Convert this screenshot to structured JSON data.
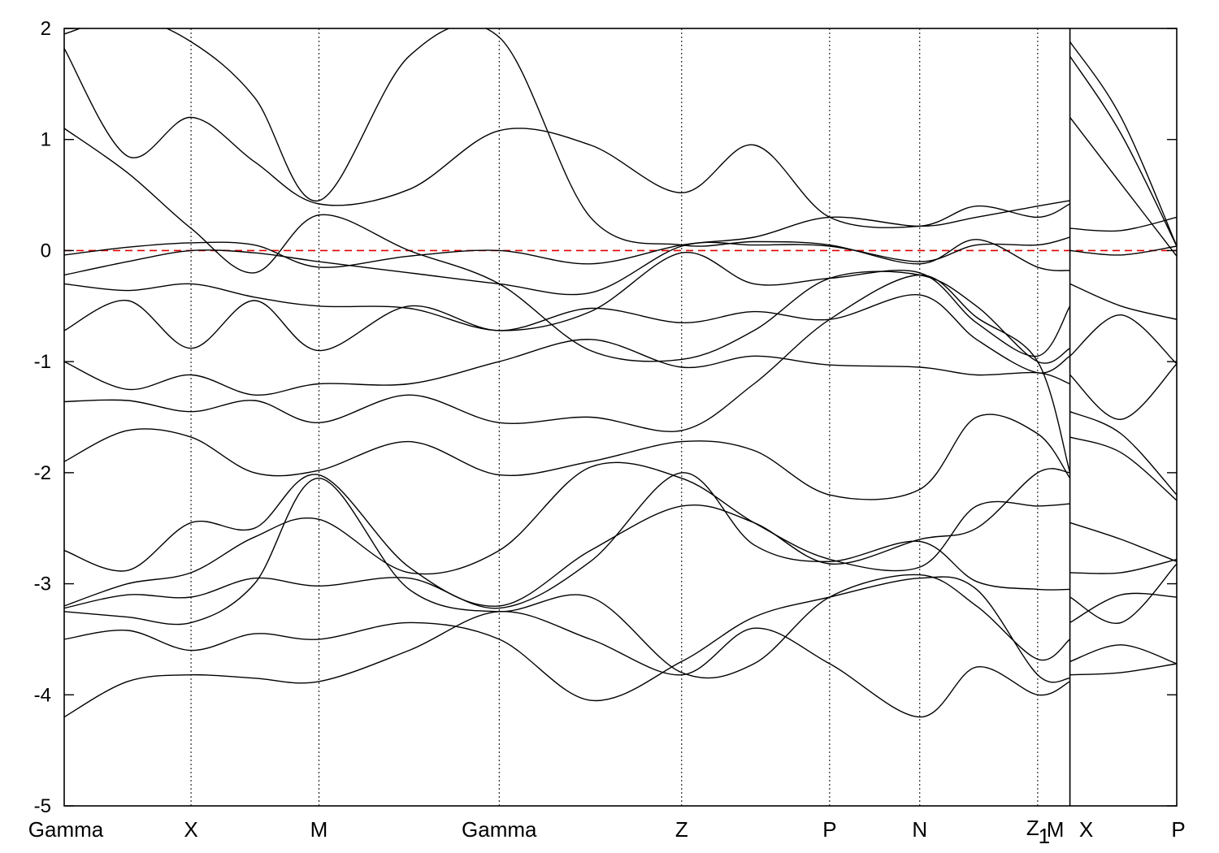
{
  "chart_data": {
    "type": "line",
    "title": "",
    "xlabel": "",
    "ylabel": "",
    "ylim": [
      -5,
      2
    ],
    "yticks": [
      2,
      1,
      0,
      -1,
      -2,
      -3,
      -4,
      -5
    ],
    "ytick_labels": [
      "2",
      "1",
      "0",
      "-1",
      "-2",
      "-3",
      "-4",
      "-5"
    ],
    "xlim": [
      0,
      10
    ],
    "kpoints": [
      {
        "label": "Gamma",
        "x": 0.0
      },
      {
        "label": "X",
        "x": 1.14
      },
      {
        "label": "M",
        "x": 2.29
      },
      {
        "label": "Gamma",
        "x": 3.91
      },
      {
        "label": "Z",
        "x": 5.55
      },
      {
        "label": "P",
        "x": 6.88
      },
      {
        "label": "N",
        "x": 7.69
      },
      {
        "label": "Z",
        "x": 8.75
      },
      {
        "label": "1",
        "x": 8.75
      },
      {
        "label": "M",
        "x": 9.04
      },
      {
        "label": "X",
        "x": 9.04
      },
      {
        "label": "P",
        "x": 10.0
      }
    ],
    "segment_break_x": 9.04,
    "fermi_level": 0,
    "fermi_color": "#e00000",
    "band_color": "#000000",
    "series": [
      {
        "x": [
          0,
          0.57,
          1.14,
          1.71,
          2.29,
          3.1,
          3.91,
          4.73,
          5.55,
          6.2,
          6.88,
          7.69,
          8.2,
          8.75,
          9.04
        ],
        "y": [
          -0.04,
          0.03,
          0.07,
          0.05,
          -0.15,
          -0.05,
          0.0,
          -0.12,
          0.05,
          0.12,
          0.3,
          0.22,
          0.3,
          0.4,
          0.45
        ]
      },
      {
        "x": [
          9.04,
          9.5,
          10.0
        ],
        "y": [
          0.2,
          0.18,
          0.3
        ]
      },
      {
        "x": [
          0,
          0.57,
          1.14,
          1.71,
          2.29,
          3.1,
          3.91,
          4.73,
          5.55,
          6.2,
          6.88,
          7.69,
          8.2,
          8.75,
          9.04
        ],
        "y": [
          -0.22,
          -0.1,
          0.0,
          -0.02,
          -0.1,
          -0.2,
          -0.3,
          -0.38,
          0.04,
          0.05,
          0.04,
          -0.1,
          0.05,
          0.05,
          0.12
        ]
      },
      {
        "x": [
          9.04,
          9.5,
          10.0
        ],
        "y": [
          0.0,
          -0.04,
          0.04
        ]
      },
      {
        "x": [
          0,
          0.57,
          1.14,
          1.71,
          2.29,
          3.1,
          3.91,
          4.73,
          5.55,
          6.2,
          6.88,
          7.69,
          8.2,
          8.75,
          9.04
        ],
        "y": [
          -0.3,
          -0.36,
          -0.3,
          -0.42,
          -0.5,
          -0.52,
          -0.72,
          -0.55,
          -0.02,
          -0.3,
          -0.25,
          -0.2,
          -0.65,
          -0.95,
          -0.5
        ]
      },
      {
        "x": [
          9.04,
          9.5,
          10.0
        ],
        "y": [
          -0.3,
          -0.5,
          -0.62
        ]
      },
      {
        "x": [
          0,
          0.57,
          1.14,
          1.71,
          2.29,
          3.1,
          3.91,
          4.73,
          5.55,
          6.2,
          6.88,
          7.69,
          8.2,
          8.75,
          9.04
        ],
        "y": [
          -0.72,
          -0.45,
          -0.88,
          -0.45,
          -0.9,
          -0.5,
          -0.72,
          -0.52,
          -0.65,
          -0.55,
          -0.62,
          -0.4,
          -0.8,
          -1.1,
          -0.95
        ]
      },
      {
        "x": [
          9.04,
          9.5,
          10.0
        ],
        "y": [
          -0.95,
          -0.58,
          -1.02
        ]
      },
      {
        "x": [
          0,
          0.57,
          1.14,
          1.71,
          2.29,
          3.1,
          3.91,
          4.73,
          5.55,
          6.2,
          6.88,
          7.69,
          8.2,
          8.75,
          9.04
        ],
        "y": [
          -1.0,
          -1.25,
          -1.12,
          -1.3,
          -1.2,
          -1.2,
          -1.0,
          -0.8,
          -1.05,
          -0.95,
          -1.03,
          -1.05,
          -1.12,
          -1.1,
          -1.2
        ]
      },
      {
        "x": [
          9.04,
          9.5,
          10.0
        ],
        "y": [
          -1.12,
          -1.52,
          -1.02
        ]
      },
      {
        "x": [
          0,
          0.57,
          1.14,
          1.71,
          2.29,
          3.1,
          3.91,
          4.73,
          5.55,
          6.2,
          6.88,
          7.69,
          8.2,
          8.75,
          9.04
        ],
        "y": [
          -1.36,
          -1.35,
          -1.45,
          -1.35,
          -1.55,
          -1.3,
          -1.55,
          -1.5,
          -1.62,
          -1.2,
          -0.62,
          -0.22,
          -0.6,
          -1.0,
          -2.0
        ]
      },
      {
        "x": [
          9.04,
          9.5,
          10.0
        ],
        "y": [
          -1.45,
          -1.65,
          -2.2
        ]
      },
      {
        "x": [
          0,
          0.57,
          1.14,
          1.71,
          2.29,
          3.1,
          3.91,
          4.73,
          5.55,
          6.2,
          6.88,
          7.69,
          8.2,
          8.75,
          9.04
        ],
        "y": [
          -1.9,
          -1.62,
          -1.68,
          -2.0,
          -1.98,
          -1.72,
          -2.02,
          -1.9,
          -1.72,
          -1.8,
          -2.2,
          -2.15,
          -1.5,
          -1.65,
          -2.05
        ]
      },
      {
        "x": [
          9.04,
          9.5,
          10.0
        ],
        "y": [
          -1.68,
          -1.82,
          -2.25
        ]
      },
      {
        "x": [
          0,
          0.57,
          1.14,
          1.71,
          2.29,
          3.1,
          3.91,
          4.73,
          5.55,
          6.2,
          6.88,
          7.69,
          8.2,
          8.75,
          9.04
        ],
        "y": [
          -2.7,
          -2.88,
          -2.45,
          -2.5,
          -2.02,
          -2.85,
          -3.2,
          -2.7,
          -2.3,
          -2.45,
          -2.82,
          -2.6,
          -2.5,
          -2.0,
          -2.0
        ]
      },
      {
        "x": [
          9.04,
          9.5,
          10.0
        ],
        "y": [
          -2.45,
          -2.6,
          -2.8
        ]
      },
      {
        "x": [
          0,
          0.57,
          1.14,
          1.71,
          2.29,
          3.1,
          3.91,
          4.73,
          5.55,
          6.2,
          6.88,
          7.69,
          8.2,
          8.75,
          9.04
        ],
        "y": [
          -3.2,
          -3.0,
          -2.9,
          -2.58,
          -2.42,
          -2.9,
          -2.7,
          -1.95,
          -2.05,
          -2.45,
          -2.78,
          -2.85,
          -2.3,
          -2.3,
          -2.28
        ]
      },
      {
        "x": [
          9.04,
          9.5,
          10.0
        ],
        "y": [
          -2.9,
          -2.9,
          -2.78
        ]
      },
      {
        "x": [
          0,
          0.57,
          1.14,
          1.71,
          2.29,
          3.1,
          3.91,
          4.73,
          5.55,
          6.2,
          6.88,
          7.69,
          8.2,
          8.75,
          9.04
        ],
        "y": [
          -3.22,
          -3.1,
          -3.12,
          -2.95,
          -3.02,
          -2.95,
          -3.22,
          -2.8,
          -2.0,
          -2.65,
          -2.8,
          -2.62,
          -2.98,
          -3.05,
          -3.05
        ]
      },
      {
        "x": [
          9.04,
          9.5,
          10.0
        ],
        "y": [
          -3.12,
          -3.35,
          -2.82
        ]
      },
      {
        "x": [
          0,
          0.57,
          1.14,
          1.71,
          2.29,
          3.1,
          3.91,
          4.73,
          5.55,
          6.2,
          6.88,
          7.69,
          8.2,
          8.75,
          9.04
        ],
        "y": [
          -3.25,
          -3.3,
          -3.35,
          -3.0,
          -2.05,
          -3.05,
          -3.25,
          -3.12,
          -3.8,
          -3.72,
          -3.12,
          -2.92,
          -3.2,
          -3.68,
          -3.5
        ]
      },
      {
        "x": [
          9.04,
          9.5,
          10.0
        ],
        "y": [
          -3.35,
          -3.1,
          -3.12
        ]
      },
      {
        "x": [
          0,
          0.57,
          1.14,
          1.71,
          2.29,
          3.1,
          3.91,
          4.73,
          5.55,
          6.2,
          6.88,
          7.69,
          8.2,
          8.75,
          9.04
        ],
        "y": [
          -3.5,
          -3.42,
          -3.6,
          -3.45,
          -3.5,
          -3.35,
          -3.5,
          -4.05,
          -3.7,
          -3.3,
          -3.12,
          -2.95,
          -3.05,
          -3.82,
          -3.85
        ]
      },
      {
        "x": [
          9.04,
          9.5,
          10.0
        ],
        "y": [
          -3.7,
          -3.55,
          -3.72
        ]
      },
      {
        "x": [
          0,
          0.57,
          1.14,
          1.71,
          2.29,
          3.1,
          3.91,
          4.73,
          5.55,
          6.2,
          6.88,
          7.69,
          8.2,
          8.75,
          9.04
        ],
        "y": [
          -4.2,
          -3.88,
          -3.82,
          -3.85,
          -3.88,
          -3.6,
          -3.25,
          -3.5,
          -3.82,
          -3.4,
          -3.72,
          -4.2,
          -3.75,
          -4.0,
          -3.88
        ]
      },
      {
        "x": [
          9.04,
          9.5,
          10.0
        ],
        "y": [
          -3.82,
          -3.8,
          -3.72
        ]
      },
      {
        "x": [
          0,
          0.57,
          1.14,
          1.71,
          2.29,
          3.1,
          3.91,
          4.73,
          5.55,
          6.2,
          6.88,
          7.69,
          8.2,
          8.75,
          9.04
        ],
        "y": [
          1.82,
          0.85,
          1.2,
          0.8,
          0.42,
          0.55,
          1.08,
          0.95,
          0.52,
          0.95,
          0.3,
          0.22,
          0.4,
          0.3,
          0.42
        ]
      },
      {
        "x": [
          9.04,
          9.5,
          10.0
        ],
        "y": [
          1.2,
          0.6,
          -0.05
        ]
      },
      {
        "x": [
          0,
          0.57,
          1.14,
          1.71,
          2.29,
          3.1,
          3.91,
          4.73,
          5.55,
          6.2,
          6.88,
          7.69,
          8.2,
          8.75,
          9.04
        ],
        "y": [
          1.1,
          0.7,
          0.2,
          -0.2,
          0.32,
          0.0,
          -0.3,
          -0.9,
          -0.98,
          -0.72,
          -0.25,
          -0.22,
          -0.5,
          -1.0,
          -0.88
        ]
      },
      {
        "x": [
          9.04,
          9.5,
          10.0
        ],
        "y": [
          1.88,
          1.2,
          0.04
        ]
      },
      {
        "x": [
          0,
          0.57,
          1.14,
          1.71,
          2.29,
          3.1,
          3.91,
          4.73,
          5.55,
          6.2,
          6.88,
          7.69,
          8.2,
          8.75,
          9.04
        ],
        "y": [
          1.95,
          2.1,
          1.88,
          1.38,
          0.45,
          1.75,
          1.92,
          0.3,
          0.05,
          0.08,
          0.05,
          -0.12,
          0.1,
          -0.15,
          -0.18
        ]
      },
      {
        "x": [
          9.04,
          9.5,
          10.0
        ],
        "y": [
          1.75,
          1.05,
          0.04
        ]
      }
    ]
  }
}
